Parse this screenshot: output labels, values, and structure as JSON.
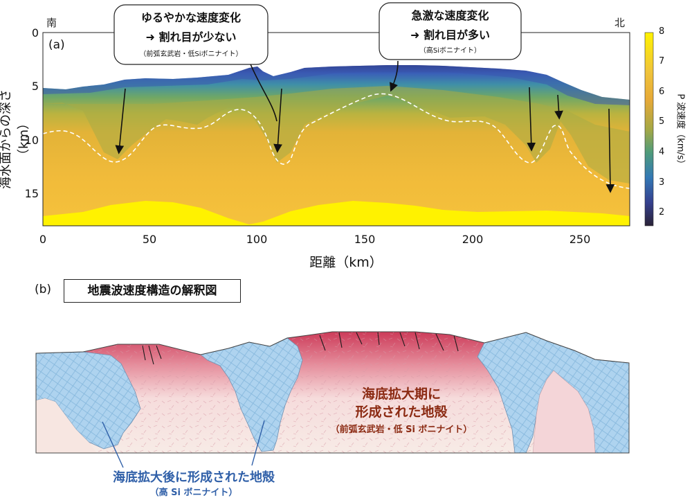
{
  "panel_a": {
    "label": "(a)",
    "south": "南",
    "north": "北",
    "y_axis_label": "海水面からの深さ（km）",
    "x_axis_label": "距離（km）",
    "x_ticks": [
      "0",
      "50",
      "100",
      "150",
      "200",
      "250"
    ],
    "y_ticks": [
      "0",
      "5",
      "10",
      "15"
    ],
    "callout_left": {
      "line1": "ゆるやかな速度変化",
      "line2": "➜ 割れ目が少ない",
      "note": "（前弧玄武岩・低Siボニナイト）"
    },
    "callout_right": {
      "line1": "急激な速度変化",
      "line2": "➜ 割れ目が多い",
      "note": "（高Siボニナイト）"
    },
    "colorbar": {
      "label": "P 波速度（km/s）",
      "ticks": [
        "8",
        "7",
        "6",
        "5",
        "4",
        "3",
        "2"
      ]
    }
  },
  "panel_b": {
    "label": "(b)",
    "title": "地震波速度構造の解釈図",
    "red_label_line1": "海底拡大期に",
    "red_label_line2": "形成された地殻",
    "red_label_note": "（前弧玄武岩・低 Si ボニナイト）",
    "blue_label_line1": "海底拡大後に形成された地殻",
    "blue_label_note": "（高 Si ボニナイト）"
  },
  "colors": {
    "dark_red": "#8b2a12",
    "blue_text": "#2f5fa8",
    "yellow": "#fff200",
    "orange": "#f2b336",
    "blue_crust": "#a9d0ec",
    "red_crust": "#d9506a"
  },
  "chart_data": {
    "type": "heatmap",
    "title": "",
    "xlabel": "距離（km）",
    "ylabel": "海水面からの深さ（km）",
    "xlim": [
      0,
      272
    ],
    "ylim": [
      18,
      0
    ],
    "colorbar_range": [
      1.6,
      8
    ],
    "seafloor_depth_km": {
      "x": [
        0,
        20,
        40,
        60,
        80,
        95,
        100,
        110,
        120,
        140,
        160,
        180,
        200,
        220,
        240,
        255,
        272
      ],
      "y": [
        5.1,
        5.0,
        4.8,
        4.3,
        4.4,
        3.9,
        3.3,
        4.0,
        3.8,
        3.6,
        3.2,
        3.3,
        3.4,
        3.5,
        4.4,
        5.5,
        6.2
      ]
    },
    "dashed_contour_km": {
      "x": [
        0,
        15,
        35,
        50,
        65,
        80,
        95,
        110,
        120,
        135,
        160,
        180,
        200,
        215,
        228,
        238,
        243,
        255,
        272
      ],
      "y": [
        9.4,
        9.0,
        12.0,
        8.7,
        8.4,
        9.2,
        7.0,
        12.4,
        8.6,
        7.9,
        5.9,
        8.0,
        7.8,
        8.7,
        11.6,
        8.7,
        10.0,
        13.4,
        14.6
      ]
    },
    "moho_top_km": {
      "x": [
        0,
        20,
        50,
        70,
        95,
        100,
        140,
        180,
        210,
        240,
        272
      ],
      "y": [
        17.2,
        16.8,
        15.6,
        15.8,
        17.4,
        17.0,
        15.6,
        15.8,
        16.4,
        16.6,
        17.2
      ]
    }
  }
}
